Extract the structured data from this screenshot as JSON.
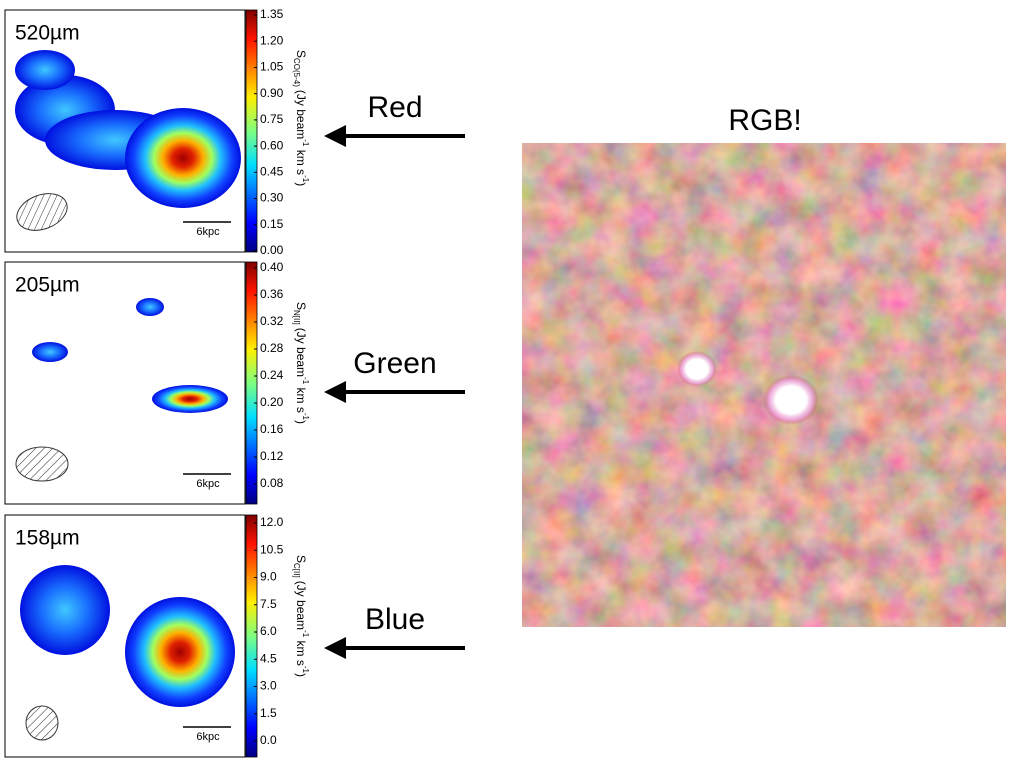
{
  "panels": [
    {
      "label": "520µm",
      "ticks": [
        "1.35",
        "1.20",
        "1.05",
        "0.90",
        "0.75",
        "0.60",
        "0.45",
        "0.30",
        "0.15",
        "0.00"
      ],
      "cbar_symbol": "S",
      "cbar_sub": "CO(5-4)",
      "cbar_unit": [
        "(Jy beam",
        "-1",
        " km s",
        "-1",
        ")"
      ],
      "scale": "6kpc"
    },
    {
      "label": "205µm",
      "ticks": [
        "0.40",
        "0.36",
        "0.32",
        "0.28",
        "0.24",
        "0.20",
        "0.16",
        "0.12",
        "0.08"
      ],
      "cbar_symbol": "S",
      "cbar_sub": "N[II]",
      "cbar_unit": [
        "(Jy beam",
        "-1",
        " km s",
        "-1",
        ")"
      ],
      "scale": "6kpc"
    },
    {
      "label": "158µm",
      "ticks": [
        "12.0",
        "10.5",
        "9.0",
        "7.5",
        "6.0",
        "4.5",
        "3.0",
        "1.5",
        "0.0"
      ],
      "cbar_symbol": "S",
      "cbar_sub": "C[II]",
      "cbar_unit": [
        "(Jy beam",
        "-1",
        " km s",
        "-1",
        ")"
      ],
      "scale": "6kpc"
    }
  ],
  "arrows": [
    "Red",
    "Green",
    "Blue"
  ],
  "rgb_title": "RGB!"
}
